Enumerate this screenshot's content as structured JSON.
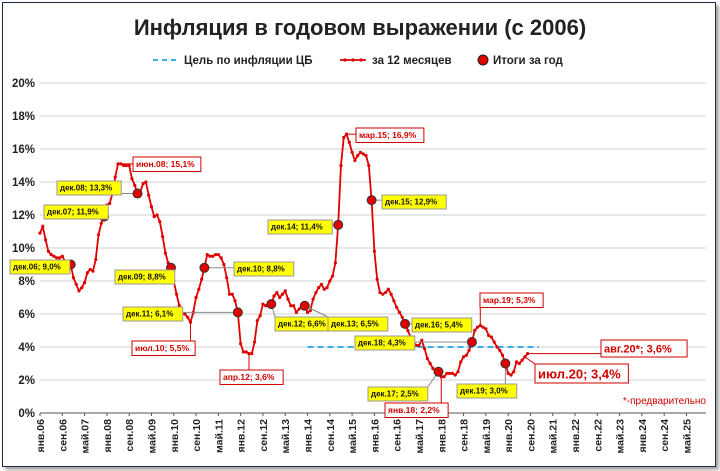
{
  "chart_data": {
    "type": "line",
    "title": "Инфляция в годовом выражении (с 2006)",
    "legend": [
      {
        "name": "Цель по инфляции ЦБ",
        "style": "dashed",
        "color": "#3ab0e8"
      },
      {
        "name": "за 12 месяцев",
        "style": "line-markers",
        "color": "#e00000"
      },
      {
        "name": "Итоги за год",
        "style": "circle",
        "color": "#e00000"
      }
    ],
    "legend_position": "top",
    "grid": "horizontal",
    "ylim": [
      0,
      20
    ],
    "yticks": [
      "0%",
      "2%",
      "4%",
      "6%",
      "8%",
      "10%",
      "12%",
      "14%",
      "16%",
      "18%",
      "20%"
    ],
    "xlim": [
      "2006-01",
      "2025-12"
    ],
    "xticks": [
      "янв.06",
      "сен.06",
      "май.07",
      "янв.08",
      "сен.08",
      "май.09",
      "янв.10",
      "сен.10",
      "май.11",
      "янв.12",
      "сен.12",
      "май.13",
      "янв.14",
      "сен.14",
      "май.15",
      "янв.16",
      "сен.16",
      "май.17",
      "янв.18",
      "сен.18",
      "май.19",
      "янв.20",
      "сен.20",
      "май.21",
      "янв.22",
      "сен.22",
      "май.23",
      "янв.24",
      "сен.24",
      "май.25"
    ],
    "series": [
      {
        "name": "за 12 месяцев",
        "points": [
          [
            "2006-01",
            10.9
          ],
          [
            "2006-02",
            11.3
          ],
          [
            "2006-03",
            10.5
          ],
          [
            "2006-04",
            9.8
          ],
          [
            "2006-05",
            9.6
          ],
          [
            "2006-06",
            9.5
          ],
          [
            "2006-07",
            9.4
          ],
          [
            "2006-08",
            9.4
          ],
          [
            "2006-09",
            9.5
          ],
          [
            "2006-10",
            9.2
          ],
          [
            "2006-11",
            9.0
          ],
          [
            "2006-12",
            9.0
          ],
          [
            "2007-01",
            8.2
          ],
          [
            "2007-02",
            7.8
          ],
          [
            "2007-03",
            7.4
          ],
          [
            "2007-04",
            7.6
          ],
          [
            "2007-05",
            7.9
          ],
          [
            "2007-06",
            8.5
          ],
          [
            "2007-07",
            8.7
          ],
          [
            "2007-08",
            8.6
          ],
          [
            "2007-09",
            9.3
          ],
          [
            "2007-10",
            10.8
          ],
          [
            "2007-11",
            11.5
          ],
          [
            "2007-12",
            11.9
          ],
          [
            "2008-01",
            12.6
          ],
          [
            "2008-02",
            12.7
          ],
          [
            "2008-03",
            13.3
          ],
          [
            "2008-04",
            14.3
          ],
          [
            "2008-05",
            15.1
          ],
          [
            "2008-06",
            15.1
          ],
          [
            "2008-07",
            15.0
          ],
          [
            "2008-08",
            15.0
          ],
          [
            "2008-09",
            15.0
          ],
          [
            "2008-10",
            14.2
          ],
          [
            "2008-11",
            13.8
          ],
          [
            "2008-12",
            13.3
          ],
          [
            "2009-01",
            13.4
          ],
          [
            "2009-02",
            13.9
          ],
          [
            "2009-03",
            14.0
          ],
          [
            "2009-04",
            13.2
          ],
          [
            "2009-05",
            12.5
          ],
          [
            "2009-06",
            11.9
          ],
          [
            "2009-07",
            12.0
          ],
          [
            "2009-08",
            11.6
          ],
          [
            "2009-09",
            10.7
          ],
          [
            "2009-10",
            9.7
          ],
          [
            "2009-11",
            9.1
          ],
          [
            "2009-12",
            8.8
          ],
          [
            "2010-01",
            8.0
          ],
          [
            "2010-02",
            7.2
          ],
          [
            "2010-03",
            6.5
          ],
          [
            "2010-04",
            6.0
          ],
          [
            "2010-05",
            6.0
          ],
          [
            "2010-06",
            5.8
          ],
          [
            "2010-07",
            5.5
          ],
          [
            "2010-08",
            6.1
          ],
          [
            "2010-09",
            7.0
          ],
          [
            "2010-10",
            7.5
          ],
          [
            "2010-11",
            8.1
          ],
          [
            "2010-12",
            8.8
          ],
          [
            "2011-01",
            9.6
          ],
          [
            "2011-02",
            9.5
          ],
          [
            "2011-03",
            9.5
          ],
          [
            "2011-04",
            9.6
          ],
          [
            "2011-05",
            9.6
          ],
          [
            "2011-06",
            9.4
          ],
          [
            "2011-07",
            9.0
          ],
          [
            "2011-08",
            8.2
          ],
          [
            "2011-09",
            7.2
          ],
          [
            "2011-10",
            7.2
          ],
          [
            "2011-11",
            6.8
          ],
          [
            "2011-12",
            6.1
          ],
          [
            "2012-01",
            4.2
          ],
          [
            "2012-02",
            3.7
          ],
          [
            "2012-03",
            3.7
          ],
          [
            "2012-04",
            3.6
          ],
          [
            "2012-05",
            3.6
          ],
          [
            "2012-06",
            4.3
          ],
          [
            "2012-07",
            5.6
          ],
          [
            "2012-08",
            5.9
          ],
          [
            "2012-09",
            6.6
          ],
          [
            "2012-10",
            6.5
          ],
          [
            "2012-11",
            6.5
          ],
          [
            "2012-12",
            6.6
          ],
          [
            "2013-01",
            7.1
          ],
          [
            "2013-02",
            7.3
          ],
          [
            "2013-03",
            7.0
          ],
          [
            "2013-04",
            7.2
          ],
          [
            "2013-05",
            7.4
          ],
          [
            "2013-06",
            6.9
          ],
          [
            "2013-07",
            6.5
          ],
          [
            "2013-08",
            6.5
          ],
          [
            "2013-09",
            6.1
          ],
          [
            "2013-10",
            6.3
          ],
          [
            "2013-11",
            6.5
          ],
          [
            "2013-12",
            6.5
          ],
          [
            "2014-01",
            6.1
          ],
          [
            "2014-02",
            6.2
          ],
          [
            "2014-03",
            6.9
          ],
          [
            "2014-04",
            7.3
          ],
          [
            "2014-05",
            7.6
          ],
          [
            "2014-06",
            7.8
          ],
          [
            "2014-07",
            7.5
          ],
          [
            "2014-08",
            7.6
          ],
          [
            "2014-09",
            8.0
          ],
          [
            "2014-10",
            8.3
          ],
          [
            "2014-11",
            9.1
          ],
          [
            "2014-12",
            11.4
          ],
          [
            "2015-01",
            15.0
          ],
          [
            "2015-02",
            16.7
          ],
          [
            "2015-03",
            16.9
          ],
          [
            "2015-04",
            16.4
          ],
          [
            "2015-05",
            15.8
          ],
          [
            "2015-06",
            15.3
          ],
          [
            "2015-07",
            15.6
          ],
          [
            "2015-08",
            15.8
          ],
          [
            "2015-09",
            15.7
          ],
          [
            "2015-10",
            15.6
          ],
          [
            "2015-11",
            15.0
          ],
          [
            "2015-12",
            12.9
          ],
          [
            "2016-01",
            9.8
          ],
          [
            "2016-02",
            8.1
          ],
          [
            "2016-03",
            7.3
          ],
          [
            "2016-04",
            7.2
          ],
          [
            "2016-05",
            7.3
          ],
          [
            "2016-06",
            7.5
          ],
          [
            "2016-07",
            7.2
          ],
          [
            "2016-08",
            6.8
          ],
          [
            "2016-09",
            6.4
          ],
          [
            "2016-10",
            6.1
          ],
          [
            "2016-11",
            5.8
          ],
          [
            "2016-12",
            5.4
          ],
          [
            "2017-01",
            5.0
          ],
          [
            "2017-02",
            4.6
          ],
          [
            "2017-03",
            4.3
          ],
          [
            "2017-04",
            4.1
          ],
          [
            "2017-05",
            4.1
          ],
          [
            "2017-06",
            4.4
          ],
          [
            "2017-07",
            3.9
          ],
          [
            "2017-08",
            3.3
          ],
          [
            "2017-09",
            3.0
          ],
          [
            "2017-10",
            2.7
          ],
          [
            "2017-11",
            2.5
          ],
          [
            "2017-12",
            2.5
          ],
          [
            "2018-01",
            2.2
          ],
          [
            "2018-02",
            2.2
          ],
          [
            "2018-03",
            2.4
          ],
          [
            "2018-04",
            2.4
          ],
          [
            "2018-05",
            2.4
          ],
          [
            "2018-06",
            2.3
          ],
          [
            "2018-07",
            2.5
          ],
          [
            "2018-08",
            3.1
          ],
          [
            "2018-09",
            3.4
          ],
          [
            "2018-10",
            3.5
          ],
          [
            "2018-11",
            3.8
          ],
          [
            "2018-12",
            4.3
          ],
          [
            "2019-01",
            5.0
          ],
          [
            "2019-02",
            5.2
          ],
          [
            "2019-03",
            5.3
          ],
          [
            "2019-04",
            5.2
          ],
          [
            "2019-05",
            5.1
          ],
          [
            "2019-06",
            4.7
          ],
          [
            "2019-07",
            4.6
          ],
          [
            "2019-08",
            4.3
          ],
          [
            "2019-09",
            4.0
          ],
          [
            "2019-10",
            3.8
          ],
          [
            "2019-11",
            3.5
          ],
          [
            "2019-12",
            3.0
          ],
          [
            "2020-01",
            2.4
          ],
          [
            "2020-02",
            2.3
          ],
          [
            "2020-03",
            2.5
          ],
          [
            "2020-04",
            3.1
          ],
          [
            "2020-05",
            3.0
          ],
          [
            "2020-06",
            3.2
          ],
          [
            "2020-07",
            3.4
          ],
          [
            "2020-08",
            3.6
          ]
        ]
      }
    ],
    "annual_points": [
      [
        "2006-12",
        9.0
      ],
      [
        "2007-12",
        11.9
      ],
      [
        "2008-12",
        13.3
      ],
      [
        "2009-12",
        8.8
      ],
      [
        "2010-12",
        8.8
      ],
      [
        "2011-12",
        6.1
      ],
      [
        "2012-12",
        6.6
      ],
      [
        "2013-12",
        6.5
      ],
      [
        "2014-12",
        11.4
      ],
      [
        "2015-12",
        12.9
      ],
      [
        "2016-12",
        5.4
      ],
      [
        "2017-12",
        2.5
      ],
      [
        "2018-12",
        4.3
      ],
      [
        "2019-12",
        3.0
      ]
    ],
    "target_line": {
      "value": 4.0,
      "from": "2014-01",
      "to": "2020-12"
    },
    "annotations": [
      {
        "text": "дек.06; 9,0%",
        "at": "2006-12",
        "value": 9.0,
        "style": "yellow",
        "pos": [
          10,
          260
        ]
      },
      {
        "text": "дек.07; 11,9%",
        "at": "2007-12",
        "value": 11.9,
        "style": "yellow",
        "pos": [
          44,
          205
        ]
      },
      {
        "text": "дек.08; 13,3%",
        "at": "2008-12",
        "value": 13.3,
        "style": "yellow",
        "pos": [
          57,
          181
        ]
      },
      {
        "text": "июн.08; 15,1%",
        "at": "2008-06",
        "value": 15.1,
        "style": "red",
        "pos": [
          133,
          157
        ]
      },
      {
        "text": "дек.09; 8,8%",
        "at": "2009-12",
        "value": 8.8,
        "style": "yellow",
        "pos": [
          115,
          270
        ]
      },
      {
        "text": "дек.10; 8,8%",
        "at": "2010-12",
        "value": 8.8,
        "style": "yellow",
        "pos": [
          234,
          262
        ]
      },
      {
        "text": "дек.11; 6,1%",
        "at": "2011-12",
        "value": 6.1,
        "style": "yellow",
        "pos": [
          123,
          307
        ]
      },
      {
        "text": "июл.10; 5,5%",
        "at": "2010-07",
        "value": 5.5,
        "style": "red",
        "pos": [
          132,
          341
        ]
      },
      {
        "text": "апр.12; 3,6%",
        "at": "2012-04",
        "value": 3.6,
        "style": "red",
        "pos": [
          220,
          370
        ]
      },
      {
        "text": "дек.12; 6,6%",
        "at": "2012-12",
        "value": 6.6,
        "style": "yellow",
        "pos": [
          275,
          317
        ]
      },
      {
        "text": "дек.13; 6,5%",
        "at": "2013-12",
        "value": 6.5,
        "style": "yellow",
        "pos": [
          328,
          317
        ]
      },
      {
        "text": "дек.14; 11,4%",
        "at": "2014-12",
        "value": 11.4,
        "style": "yellow",
        "pos": [
          268,
          220
        ]
      },
      {
        "text": "мар.15; 16,9%",
        "at": "2015-03",
        "value": 16.9,
        "style": "red",
        "pos": [
          356,
          128
        ]
      },
      {
        "text": "дек.15; 12,9%",
        "at": "2015-12",
        "value": 12.9,
        "style": "yellow",
        "pos": [
          382,
          195
        ]
      },
      {
        "text": "дек.16; 5,4%",
        "at": "2016-12",
        "value": 5.4,
        "style": "yellow",
        "pos": [
          412,
          318
        ]
      },
      {
        "text": "дек.18; 4,3%",
        "at": "2018-12",
        "value": 4.3,
        "style": "yellow",
        "pos": [
          355,
          336
        ]
      },
      {
        "text": "мар.19; 5,3%",
        "at": "2019-03",
        "value": 5.3,
        "style": "red",
        "pos": [
          480,
          293
        ]
      },
      {
        "text": "дек.17; 2,5%",
        "at": "2017-12",
        "value": 2.5,
        "style": "yellow",
        "pos": [
          368,
          387
        ]
      },
      {
        "text": "янв.18; 2,2%",
        "at": "2018-01",
        "value": 2.2,
        "style": "red",
        "pos": [
          385,
          403
        ]
      },
      {
        "text": "дек.19; 3,0%",
        "at": "2019-12",
        "value": 3.0,
        "style": "yellow",
        "pos": [
          457,
          384
        ]
      },
      {
        "text": "авг.20*; 3,6%",
        "at": "2020-08",
        "value": 3.6,
        "style": "red-large",
        "pos": [
          601,
          340
        ]
      },
      {
        "text": "июл.20; 3,4%",
        "at": "2020-07",
        "value": 3.4,
        "style": "red-xlarge",
        "pos": [
          535,
          364
        ]
      }
    ],
    "footnote": "*-предварительно"
  }
}
